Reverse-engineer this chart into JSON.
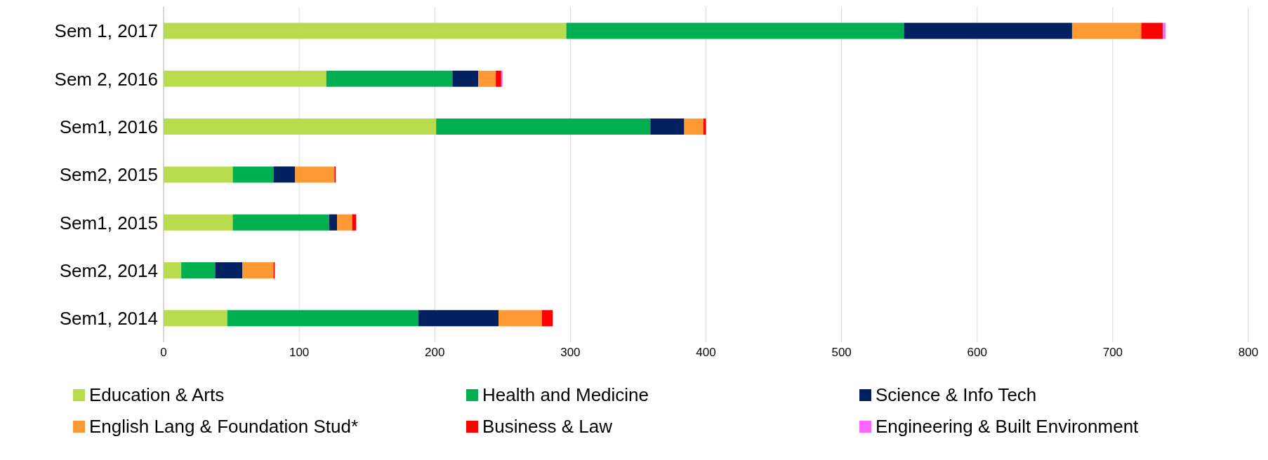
{
  "chart_data": {
    "type": "bar",
    "orientation": "horizontal",
    "stacked": true,
    "categories": [
      "Sem 1, 2017",
      "Sem 2, 2016",
      "Sem1, 2016",
      "Sem2, 2015",
      "Sem1, 2015",
      "Sem2, 2014",
      "Sem1, 2014"
    ],
    "series": [
      {
        "name": "Education & Arts",
        "color": "#b8dc4e",
        "values": [
          297,
          120,
          201,
          51,
          51,
          13,
          47
        ]
      },
      {
        "name": "Health and Medicine",
        "color": "#00b050",
        "values": [
          249,
          93,
          158,
          30,
          71,
          25,
          141
        ]
      },
      {
        "name": "Science & Info Tech",
        "color": "#002060",
        "values": [
          124,
          19,
          25,
          16,
          6,
          20,
          59
        ]
      },
      {
        "name": "English Lang & Foundation Stud*",
        "color": "#ff9933",
        "values": [
          51,
          13,
          14,
          29,
          11,
          23,
          32
        ]
      },
      {
        "name": "Business & Law",
        "color": "#ff0000",
        "values": [
          16,
          4,
          2,
          1,
          3,
          1,
          8
        ]
      },
      {
        "name": "Engineering & Built Environment",
        "color": "#ff66ff",
        "values": [
          2,
          1,
          0,
          0,
          0,
          0,
          0
        ]
      }
    ],
    "xlim": [
      0,
      800
    ],
    "xticks": [
      0,
      100,
      200,
      300,
      400,
      500,
      600,
      700,
      800
    ],
    "grid": "x",
    "legend": "bottom"
  }
}
